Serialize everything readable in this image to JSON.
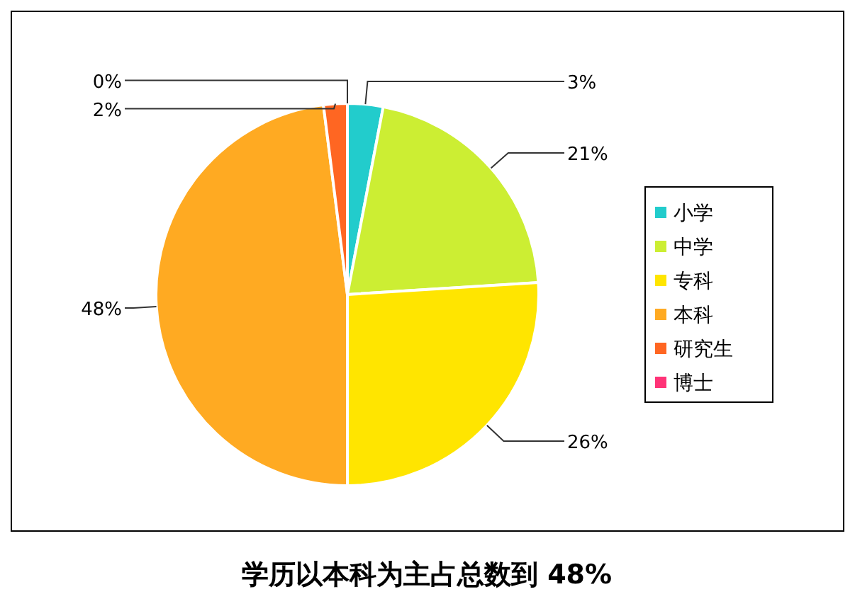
{
  "chart_data": {
    "type": "pie",
    "title": "学历以本科为主占总数到 48%",
    "categories": [
      "小学",
      "中学",
      "专科",
      "本科",
      "研究生",
      "博士"
    ],
    "values": [
      3,
      21,
      26,
      48,
      2,
      0
    ],
    "value_labels": [
      "3%",
      "21%",
      "26%",
      "48%",
      "2%",
      "0%"
    ],
    "colors": [
      "#22cccc",
      "#ccee33",
      "#ffe500",
      "#ffaa22",
      "#ff6622",
      "#ff3377"
    ],
    "legend": "right"
  }
}
